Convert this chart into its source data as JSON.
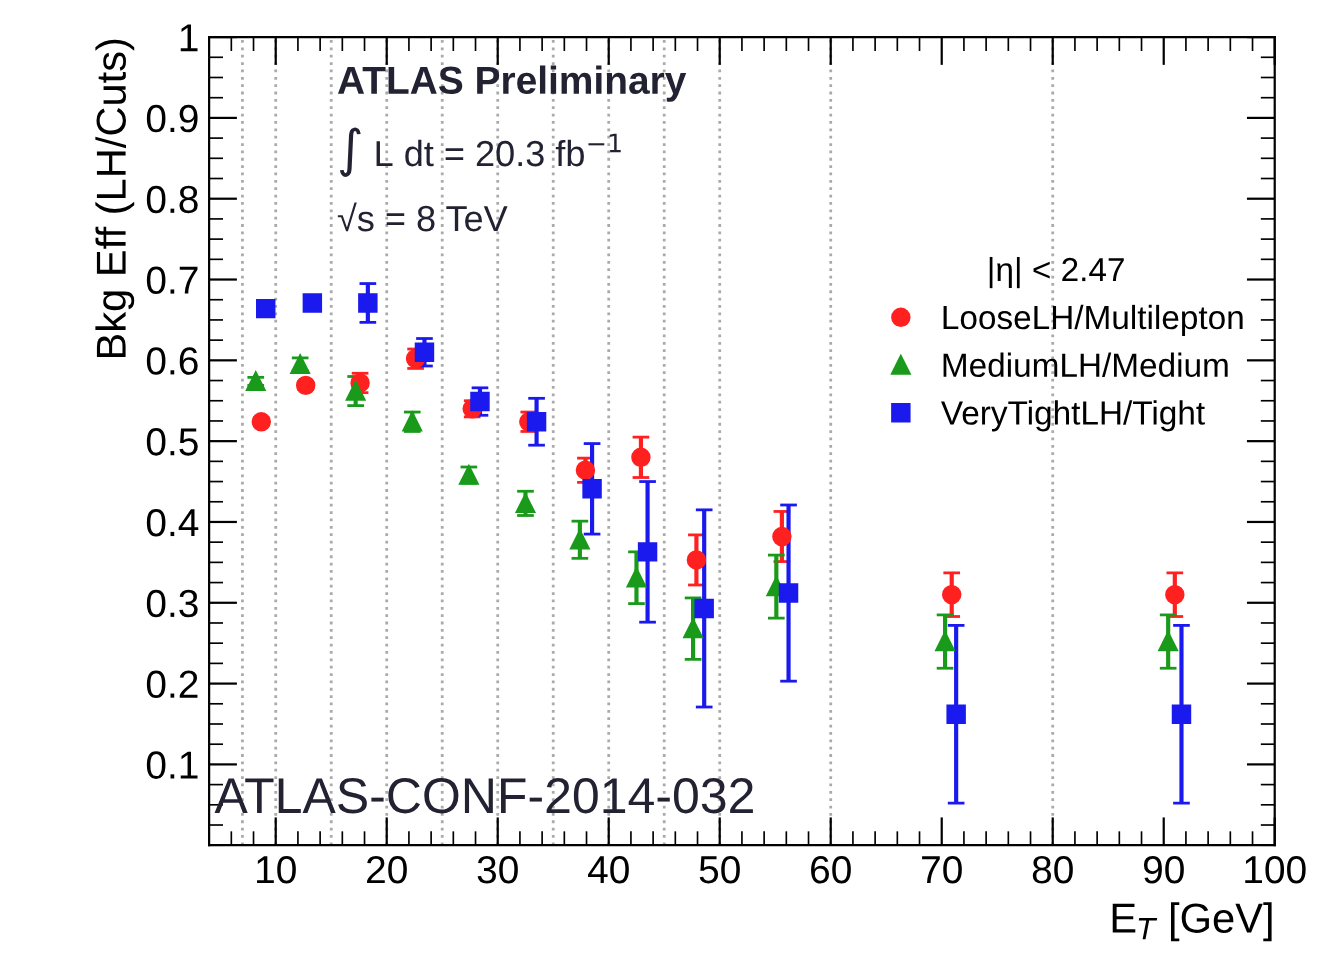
{
  "chart_data": {
    "type": "scatter",
    "xlabel": "E$_{T}$ [GeV]",
    "ylabel": "Bkg Eff (LH/Cuts)",
    "legend_title": "|η| < 2.47",
    "legend": "right",
    "xlim": [
      4,
      100
    ],
    "xticks": [
      10,
      20,
      30,
      40,
      50,
      60,
      70,
      80,
      90,
      100
    ],
    "ylim": [
      0,
      1
    ],
    "yticks": [
      0.1,
      0.2,
      0.3,
      0.4,
      0.5,
      0.6,
      0.7,
      0.8,
      0.9,
      1
    ],
    "grid": false,
    "series": [
      {
        "name": "LooseLH/Multilepton",
        "color": "#ff2020",
        "marker": "circle",
        "x": [
          8.7,
          12.7,
          17.6,
          22.6,
          27.7,
          32.8,
          37.9,
          42.9,
          47.9,
          55.6,
          70.9,
          91.0
        ],
        "values": [
          0.524,
          0.569,
          0.572,
          0.602,
          0.54,
          0.524,
          0.464,
          0.48,
          0.353,
          0.382,
          0.31,
          0.31
        ],
        "errors": [
          0.005,
          0.005,
          0.012,
          0.012,
          0.01,
          0.012,
          0.015,
          0.025,
          0.031,
          0.031,
          0.027,
          0.027
        ]
      },
      {
        "name": "MediumLH/Medium",
        "color": "#1a9a1a",
        "marker": "triangle",
        "x": [
          8.2,
          12.2,
          17.2,
          22.3,
          27.4,
          32.5,
          37.4,
          42.5,
          47.6,
          55.1,
          70.3,
          90.4
        ],
        "values": [
          0.574,
          0.595,
          0.562,
          0.524,
          0.458,
          0.423,
          0.378,
          0.331,
          0.268,
          0.32,
          0.252,
          0.252
        ],
        "errors": [
          0.005,
          0.008,
          0.018,
          0.012,
          0.01,
          0.015,
          0.023,
          0.032,
          0.038,
          0.039,
          0.033,
          0.033
        ]
      },
      {
        "name": "VeryTightLH/Tight",
        "color": "#1a1aee",
        "marker": "square",
        "x": [
          9.1,
          13.3,
          18.3,
          23.4,
          28.4,
          33.5,
          38.5,
          43.5,
          48.6,
          56.2,
          71.3,
          91.6
        ],
        "values": [
          0.664,
          0.671,
          0.671,
          0.61,
          0.549,
          0.524,
          0.441,
          0.363,
          0.293,
          0.312,
          0.162,
          0.162
        ],
        "errors": [
          0.006,
          0.008,
          0.024,
          0.017,
          0.017,
          0.029,
          0.056,
          0.087,
          0.122,
          0.109,
          0.11,
          0.11
        ]
      }
    ],
    "ref_lines": [
      {
        "axis": "x",
        "value": 7,
        "color": "#aaaaaa",
        "line_style": "dotted"
      },
      {
        "axis": "x",
        "value": 10,
        "color": "#aaaaaa",
        "line_style": "dotted"
      },
      {
        "axis": "x",
        "value": 15,
        "color": "#aaaaaa",
        "line_style": "dotted"
      },
      {
        "axis": "x",
        "value": 20,
        "color": "#aaaaaa",
        "line_style": "dotted"
      },
      {
        "axis": "x",
        "value": 25,
        "color": "#aaaaaa",
        "line_style": "dotted"
      },
      {
        "axis": "x",
        "value": 30,
        "color": "#aaaaaa",
        "line_style": "dotted"
      },
      {
        "axis": "x",
        "value": 35,
        "color": "#aaaaaa",
        "line_style": "dotted"
      },
      {
        "axis": "x",
        "value": 40,
        "color": "#aaaaaa",
        "line_style": "dotted"
      },
      {
        "axis": "x",
        "value": 45,
        "color": "#aaaaaa",
        "line_style": "dotted"
      },
      {
        "axis": "x",
        "value": 50,
        "color": "#aaaaaa",
        "line_style": "dotted"
      },
      {
        "axis": "x",
        "value": 60,
        "color": "#aaaaaa",
        "line_style": "dotted"
      },
      {
        "axis": "x",
        "value": 80,
        "color": "#aaaaaa",
        "line_style": "dotted"
      }
    ],
    "annotations": [
      "ATLAS Preliminary",
      "∫ L dt = 20.3 fb$^{−1}$",
      "√s = 8 TeV",
      "ATLAS-CONF-2014-032"
    ]
  }
}
